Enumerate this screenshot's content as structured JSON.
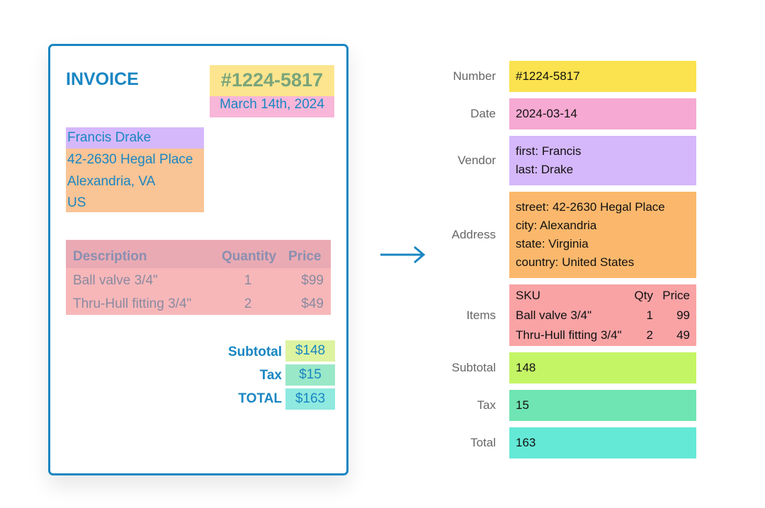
{
  "invoice": {
    "title": "INVOICE",
    "number": "#1224-5817",
    "date": "March 14th, 2024",
    "vendor_name": "Francis Drake",
    "address_lines": [
      "42-2630 Hegal Place",
      "Alexandria, VA",
      "US"
    ],
    "table": {
      "headers": [
        "Description",
        "Quantity",
        "Price"
      ],
      "rows": [
        [
          "Ball valve 3/4\"",
          "1",
          "$99"
        ],
        [
          "Thru-Hull fitting 3/4\"",
          "2",
          "$49"
        ]
      ]
    },
    "totals": [
      {
        "label": "Subtotal",
        "value": "$148"
      },
      {
        "label": "Tax",
        "value": "$15"
      },
      {
        "label": "TOTAL",
        "value": "$163"
      }
    ]
  },
  "extracted": {
    "number": {
      "label": "Number",
      "value": "#1224-5817"
    },
    "date": {
      "label": "Date",
      "value": "2024-03-14"
    },
    "vendor": {
      "label": "Vendor",
      "lines": [
        "first: Francis",
        "last: Drake"
      ]
    },
    "address": {
      "label": "Address",
      "lines": [
        "street: 42-2630 Hegal Place",
        "city: Alexandria",
        "state: Virginia",
        "country: United States"
      ]
    },
    "items": {
      "label": "Items",
      "headers": [
        "SKU",
        "Qty",
        "Price"
      ],
      "rows": [
        [
          "Ball valve 3/4\"",
          "1",
          "99"
        ],
        [
          "Thru-Hull fitting 3/4\"",
          "2",
          "49"
        ]
      ]
    },
    "subtotal": {
      "label": "Subtotal",
      "value": "148"
    },
    "tax": {
      "label": "Tax",
      "value": "15"
    },
    "total": {
      "label": "Total",
      "value": "163"
    }
  },
  "colors": {
    "accent": "#1a86c2",
    "number": "#fbe24f",
    "date": "#f6a9d2",
    "vendor": "#d5b7fb",
    "address": "#fbb86c",
    "items": "#f9a3a5",
    "subtotal": "#c4f565",
    "tax": "#6fe5b3",
    "total": "#63e9d6"
  }
}
